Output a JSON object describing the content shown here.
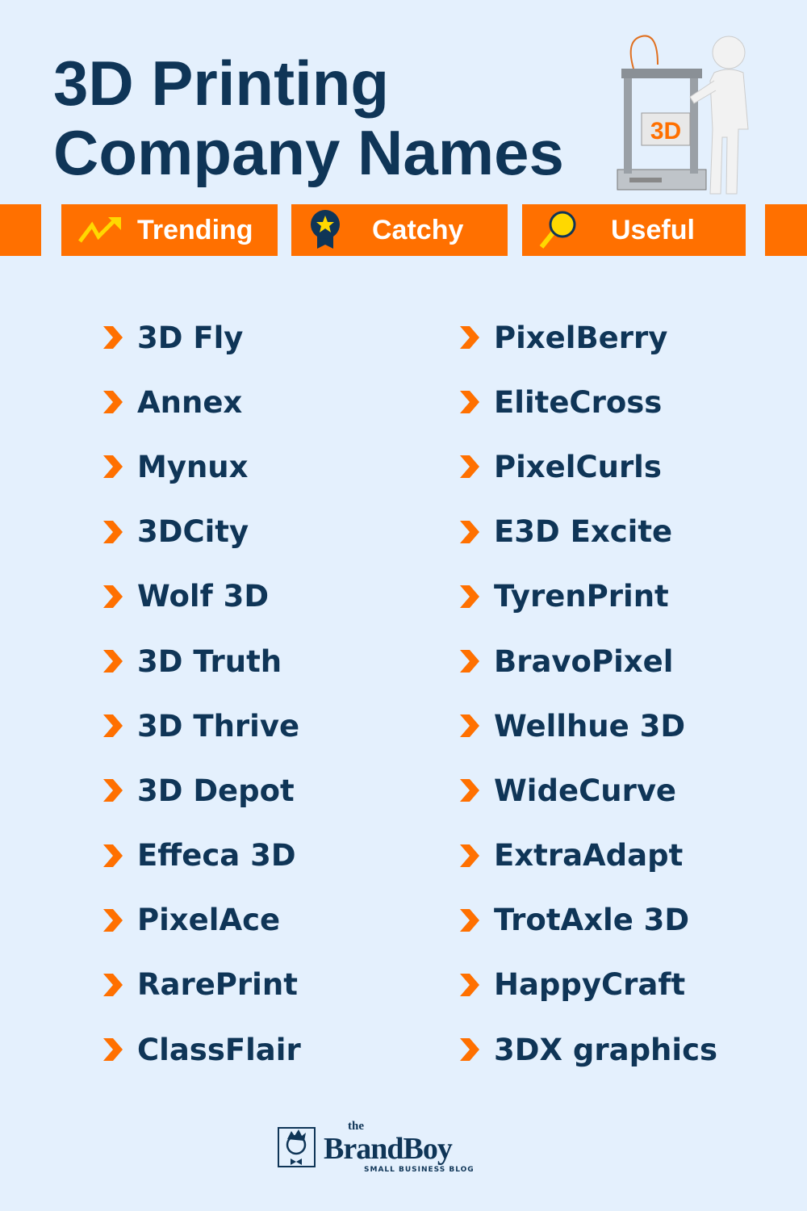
{
  "title": {
    "line1": "3D Printing",
    "line2": "Company Names"
  },
  "illustration": {
    "label": "3D",
    "icon": "3d-printer-with-figure-icon"
  },
  "tabs": [
    {
      "label": "Trending",
      "icon": "trending-up-icon"
    },
    {
      "label": "Catchy",
      "icon": "award-ribbon-icon"
    },
    {
      "label": "Useful",
      "icon": "magnifier-icon"
    }
  ],
  "colors": {
    "background": "#e4f0fd",
    "navy": "#0f3557",
    "orange": "#ff7000",
    "yellow": "#ffd800"
  },
  "names_left": [
    "3D Fly",
    "Annex",
    "Mynux",
    "3DCity",
    "Wolf 3D",
    "3D Truth",
    "3D Thrive",
    "3D Depot",
    "Effeca 3D",
    "PixelAce",
    "RarePrint",
    "ClassFlair"
  ],
  "names_right": [
    "PixelBerry",
    "EliteCross",
    "PixelCurls",
    "E3D Excite",
    "TyrenPrint",
    "BravoPixel",
    "Wellhue 3D",
    "WideCurve",
    "ExtraAdapt",
    "TrotAxle 3D",
    "HappyCraft",
    "3DX graphics"
  ],
  "footer": {
    "logo_the": "the",
    "logo_brand": "BrandBoy",
    "logo_tagline": "SMALL BUSINESS BLOG"
  }
}
